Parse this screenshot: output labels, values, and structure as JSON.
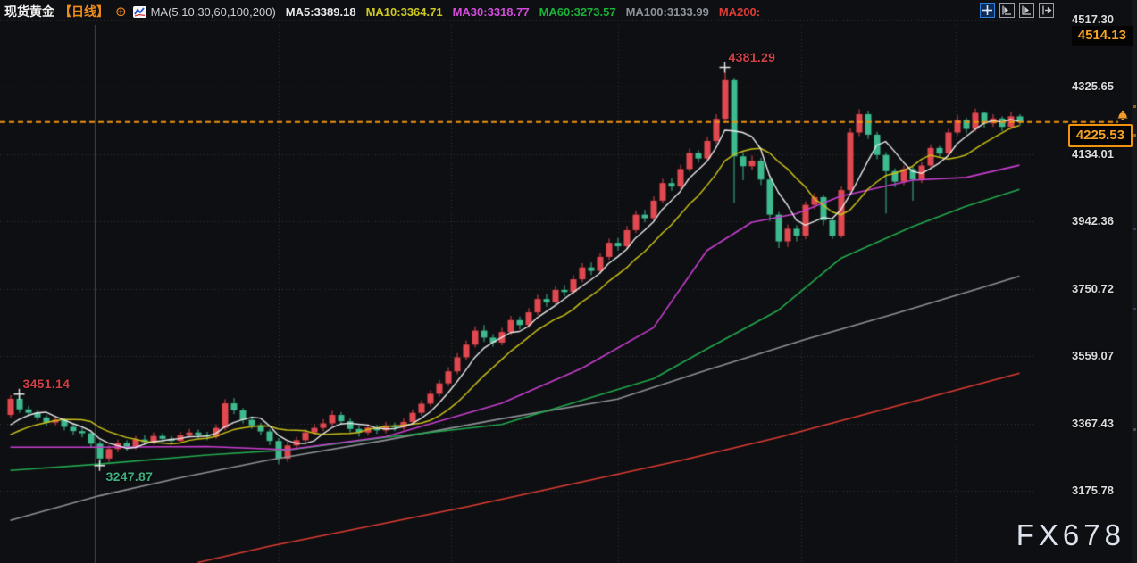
{
  "header": {
    "symbol": "现货黄金",
    "period": "【日线】",
    "plus_icon": "⊕",
    "ma_group_label": "MA(5,10,30,60,100,200)",
    "ma_values": [
      {
        "label": "MA5:3389.18",
        "color": "#e8e9eb"
      },
      {
        "label": "MA10:3364.71",
        "color": "#cfc91f"
      },
      {
        "label": "MA30:3318.77",
        "color": "#d24bda"
      },
      {
        "label": "MA60:3273.57",
        "color": "#1ab339"
      },
      {
        "label": "MA100:3133.99",
        "color": "#8d939c"
      },
      {
        "label": "MA200:",
        "color": "#e23b36"
      }
    ],
    "toolbar_icons": [
      "crosshair",
      "panel-shift-left",
      "panel-play",
      "panel-shift-right"
    ]
  },
  "price_badges": {
    "session_high": "4514.13",
    "current": "4225.53"
  },
  "watermark": "FX678",
  "chart_data": {
    "type": "candlestick",
    "title": "现货黄金 日线 (Spot Gold Daily)",
    "y_axis_labels": [
      "4517.30",
      "4325.65",
      "4134.01",
      "3942.36",
      "3750.72",
      "3559.07",
      "3367.43",
      "3175.78"
    ],
    "y_axis_prices": [
      4517.3,
      4325.65,
      4134.01,
      3942.36,
      3750.72,
      3559.07,
      3367.43,
      3175.78
    ],
    "ylim": [
      2970.5,
      4517.3
    ],
    "current_price": 4225.53,
    "session_high_price": 4514.13,
    "grid": true,
    "vgrid_x": [
      312,
      505,
      692,
      897,
      1070
    ],
    "separator_x": 106,
    "colors": {
      "up": "#e2484f",
      "down": "#3dbb8e",
      "ma5": "#e6e7e9",
      "ma10": "#c9bf17",
      "ma30": "#c83ed0",
      "ma60": "#22a84e",
      "ma100": "#8d9197",
      "ma200": "#dd3b33",
      "grid": "rgba(200,205,215,0.20)",
      "separator": "rgba(160,165,175,0.38)",
      "price_line": "#f0930f",
      "marker": "#e8e8e8"
    },
    "pre_closes": [
      3290,
      3295,
      3300,
      3310,
      3315,
      3320,
      3330,
      3340,
      3350,
      3360
    ],
    "candles": [
      [
        3392,
        3448,
        3385,
        3438
      ],
      [
        3438,
        3451.14,
        3398,
        3408
      ],
      [
        3408,
        3418,
        3390,
        3398
      ],
      [
        3398,
        3406,
        3376,
        3385
      ],
      [
        3385,
        3392,
        3360,
        3370
      ],
      [
        3370,
        3390,
        3362,
        3378
      ],
      [
        3378,
        3384,
        3348,
        3358
      ],
      [
        3358,
        3366,
        3336,
        3346
      ],
      [
        3346,
        3356,
        3328,
        3340
      ],
      [
        3340,
        3348,
        3298,
        3310
      ],
      [
        3310,
        3318,
        3247.87,
        3268
      ],
      [
        3268,
        3305,
        3258,
        3295
      ],
      [
        3295,
        3322,
        3286,
        3312
      ],
      [
        3312,
        3320,
        3290,
        3300
      ],
      [
        3300,
        3332,
        3294,
        3322
      ],
      [
        3322,
        3334,
        3306,
        3315
      ],
      [
        3315,
        3342,
        3308,
        3332
      ],
      [
        3332,
        3340,
        3314,
        3324
      ],
      [
        3324,
        3332,
        3308,
        3318
      ],
      [
        3318,
        3344,
        3312,
        3334
      ],
      [
        3334,
        3352,
        3326,
        3342
      ],
      [
        3342,
        3350,
        3326,
        3335
      ],
      [
        3335,
        3344,
        3320,
        3330
      ],
      [
        3330,
        3365,
        3324,
        3355
      ],
      [
        3355,
        3437,
        3348,
        3425
      ],
      [
        3425,
        3440,
        3394,
        3405
      ],
      [
        3405,
        3412,
        3368,
        3378
      ],
      [
        3378,
        3388,
        3352,
        3362
      ],
      [
        3362,
        3370,
        3334,
        3345
      ],
      [
        3345,
        3352,
        3306,
        3318
      ],
      [
        3318,
        3326,
        3252,
        3268
      ],
      [
        3268,
        3316,
        3258,
        3305
      ],
      [
        3305,
        3330,
        3296,
        3320
      ],
      [
        3320,
        3352,
        3312,
        3342
      ],
      [
        3342,
        3366,
        3334,
        3355
      ],
      [
        3355,
        3380,
        3346,
        3368
      ],
      [
        3368,
        3404,
        3360,
        3392
      ],
      [
        3392,
        3400,
        3364,
        3374
      ],
      [
        3374,
        3382,
        3342,
        3352
      ],
      [
        3352,
        3360,
        3330,
        3342
      ],
      [
        3342,
        3366,
        3334,
        3356
      ],
      [
        3356,
        3364,
        3338,
        3348
      ],
      [
        3348,
        3372,
        3340,
        3362
      ],
      [
        3362,
        3370,
        3346,
        3356
      ],
      [
        3356,
        3382,
        3348,
        3372
      ],
      [
        3372,
        3408,
        3364,
        3398
      ],
      [
        3398,
        3434,
        3390,
        3424
      ],
      [
        3424,
        3462,
        3416,
        3452
      ],
      [
        3452,
        3492,
        3444,
        3482
      ],
      [
        3482,
        3528,
        3474,
        3516
      ],
      [
        3516,
        3568,
        3508,
        3556
      ],
      [
        3556,
        3604,
        3548,
        3592
      ],
      [
        3592,
        3644,
        3584,
        3632
      ],
      [
        3632,
        3648,
        3600,
        3612
      ],
      [
        3612,
        3622,
        3586,
        3598
      ],
      [
        3598,
        3640,
        3590,
        3628
      ],
      [
        3628,
        3674,
        3620,
        3662
      ],
      [
        3662,
        3672,
        3636,
        3648
      ],
      [
        3648,
        3696,
        3640,
        3684
      ],
      [
        3684,
        3734,
        3676,
        3722
      ],
      [
        3722,
        3736,
        3700,
        3712
      ],
      [
        3712,
        3760,
        3704,
        3748
      ],
      [
        3748,
        3762,
        3730,
        3742
      ],
      [
        3742,
        3790,
        3734,
        3778
      ],
      [
        3778,
        3824,
        3770,
        3812
      ],
      [
        3812,
        3826,
        3790,
        3802
      ],
      [
        3802,
        3854,
        3794,
        3842
      ],
      [
        3842,
        3894,
        3834,
        3882
      ],
      [
        3882,
        3896,
        3860,
        3872
      ],
      [
        3872,
        3930,
        3864,
        3918
      ],
      [
        3918,
        3974,
        3910,
        3962
      ],
      [
        3962,
        3976,
        3940,
        3952
      ],
      [
        3952,
        4014,
        3944,
        4002
      ],
      [
        4002,
        4064,
        3994,
        4052
      ],
      [
        4052,
        4066,
        4030,
        4042
      ],
      [
        4042,
        4104,
        4034,
        4092
      ],
      [
        4092,
        4150,
        4084,
        4138
      ],
      [
        4138,
        4146,
        4110,
        4122
      ],
      [
        4122,
        4184,
        4114,
        4172
      ],
      [
        4172,
        4248,
        4164,
        4235
      ],
      [
        4235,
        4381.29,
        4226,
        4345
      ],
      [
        4345,
        4352,
        3996,
        4128
      ],
      [
        4128,
        4140,
        4060,
        4100
      ],
      [
        4100,
        4130,
        4088,
        4116
      ],
      [
        4116,
        4124,
        4046,
        4062
      ],
      [
        4062,
        4070,
        3944,
        3962
      ],
      [
        3962,
        3970,
        3867,
        3886
      ],
      [
        3886,
        3934,
        3870,
        3922
      ],
      [
        3922,
        3932,
        3886,
        3902
      ],
      [
        3902,
        4000,
        3892,
        3990
      ],
      [
        3990,
        4024,
        3978,
        4012
      ],
      [
        4012,
        4018,
        3932,
        3946
      ],
      [
        3946,
        3954,
        3893,
        3902
      ],
      [
        3902,
        4042,
        3896,
        4032
      ],
      [
        4032,
        4208,
        4024,
        4196
      ],
      [
        4196,
        4262,
        4186,
        4248
      ],
      [
        4248,
        4258,
        4178,
        4190
      ],
      [
        4190,
        4198,
        4120,
        4132
      ],
      [
        4132,
        4140,
        3965,
        4086
      ],
      [
        4086,
        4094,
        4040,
        4056
      ],
      [
        4056,
        4102,
        4046,
        4092
      ],
      [
        4092,
        4098,
        4002,
        4062
      ],
      [
        4062,
        4112,
        4052,
        4102
      ],
      [
        4102,
        4162,
        4094,
        4152
      ],
      [
        4152,
        4158,
        4124,
        4136
      ],
      [
        4136,
        4206,
        4128,
        4196
      ],
      [
        4196,
        4246,
        4188,
        4232
      ],
      [
        4232,
        4238,
        4194,
        4206
      ],
      [
        4206,
        4264,
        4198,
        4252
      ],
      [
        4252,
        4256,
        4210,
        4222
      ],
      [
        4222,
        4248,
        4212,
        4236
      ],
      [
        4236,
        4242,
        4200,
        4212
      ],
      [
        4212,
        4256,
        4204,
        4242
      ],
      [
        4242,
        4248,
        4216,
        4225.53
      ]
    ],
    "ma_overlays": [
      {
        "name": "MA30",
        "color_key": "ma30",
        "points": [
          [
            0,
            3300
          ],
          [
            10,
            3300
          ],
          [
            22,
            3302
          ],
          [
            31,
            3293
          ],
          [
            42,
            3330
          ],
          [
            55,
            3425
          ],
          [
            64,
            3525
          ],
          [
            72,
            3640
          ],
          [
            78,
            3860
          ],
          [
            83,
            3940
          ],
          [
            88,
            3965
          ],
          [
            93,
            4015
          ],
          [
            101,
            4060
          ],
          [
            107,
            4068
          ],
          [
            113,
            4103
          ]
        ]
      },
      {
        "name": "MA60",
        "color_key": "ma60",
        "points": [
          [
            0,
            3234
          ],
          [
            10,
            3252
          ],
          [
            22,
            3278
          ],
          [
            31,
            3292
          ],
          [
            42,
            3328
          ],
          [
            55,
            3365
          ],
          [
            72,
            3495
          ],
          [
            78,
            3580
          ],
          [
            86,
            3690
          ],
          [
            93,
            3838
          ],
          [
            101,
            3928
          ],
          [
            107,
            3986
          ],
          [
            113,
            4034
          ]
        ]
      },
      {
        "name": "MA100",
        "color_key": "ma100",
        "points": [
          [
            0,
            3092
          ],
          [
            10,
            3162
          ],
          [
            19,
            3213
          ],
          [
            29,
            3264
          ],
          [
            42,
            3320
          ],
          [
            55,
            3381
          ],
          [
            68,
            3437
          ],
          [
            78,
            3520
          ],
          [
            89,
            3607
          ],
          [
            99,
            3680
          ],
          [
            107,
            3741
          ],
          [
            113,
            3787
          ]
        ]
      },
      {
        "name": "MA200",
        "color_key": "ma200",
        "points": [
          [
            21,
            2972
          ],
          [
            29,
            3018
          ],
          [
            39,
            3069
          ],
          [
            51,
            3130
          ],
          [
            63,
            3196
          ],
          [
            75,
            3262
          ],
          [
            86,
            3328
          ],
          [
            95,
            3389
          ],
          [
            104,
            3450
          ],
          [
            113,
            3511
          ]
        ]
      }
    ],
    "annotations": [
      {
        "text": "4381.29",
        "color": "#cf4146",
        "candle": 80,
        "at": "high"
      },
      {
        "text": "3451.14",
        "color": "#cf4146",
        "candle": 1,
        "at": "high"
      },
      {
        "text": "3247.87",
        "color": "#3fae7e",
        "candle": 10,
        "at": "low"
      }
    ]
  }
}
